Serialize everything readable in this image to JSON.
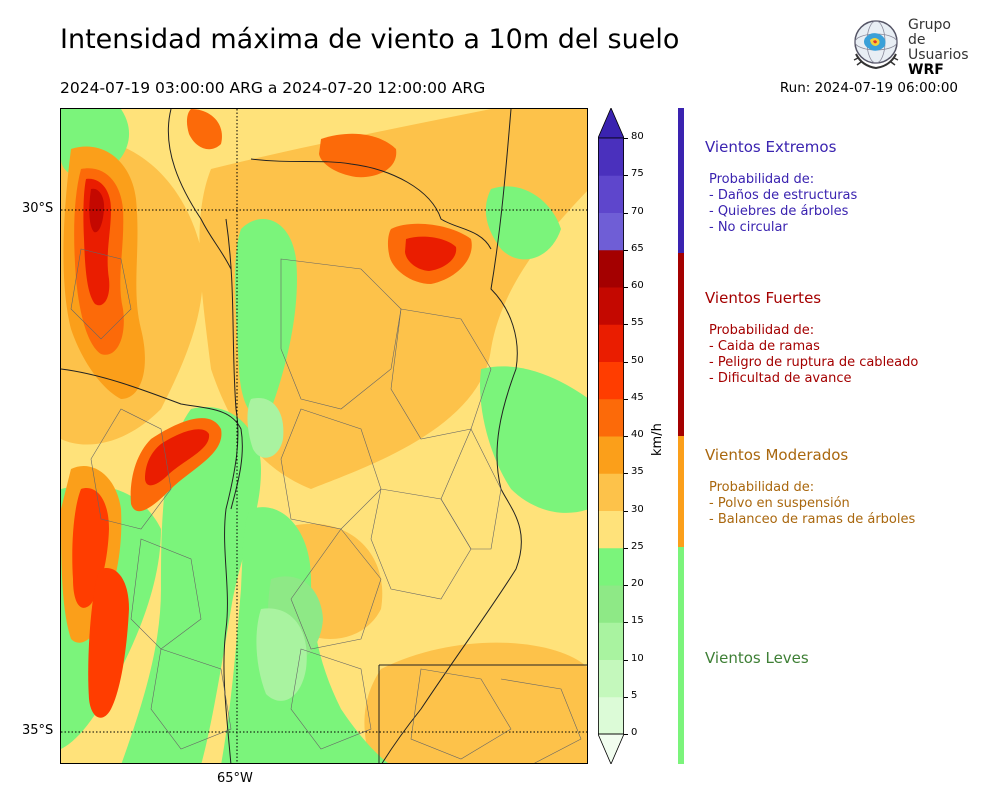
{
  "header": {
    "title": "Intensidad máxima de viento a 10m del suelo",
    "subtitle": "2024-07-19 03:00:00 ARG  a  2024-07-20 12:00:00 ARG",
    "run": "Run: 2024-07-19 06:00:00"
  },
  "logo": {
    "line1": "Grupo de",
    "line2": "Usuarios",
    "line3": "WRF"
  },
  "map": {
    "lat_labels": [
      "30°S",
      "35°S"
    ],
    "lon_labels": [
      "65°W"
    ]
  },
  "colorbar": {
    "unit": "km/h",
    "ticks": [
      "0",
      "5",
      "10",
      "15",
      "20",
      "25",
      "30",
      "35",
      "40",
      "45",
      "50",
      "55",
      "60",
      "65",
      "70",
      "75",
      "80"
    ],
    "colors": [
      "#f1fdef",
      "#dcfbd7",
      "#c4f8bc",
      "#a9f3a0",
      "#8ee986",
      "#7bf47b",
      "#ffe27a",
      "#fdc24a",
      "#fb9f1a",
      "#fc6a09",
      "#ff3d00",
      "#ea1d00",
      "#c40800",
      "#a40000",
      "#6f5ed6",
      "#5e46cc",
      "#4a30bd",
      "#3a23b0"
    ]
  },
  "categories": [
    {
      "title": "Vientos Extremos",
      "color": "#3a23b0",
      "lines": [
        "Probabilidad de:",
        "- Daños de estructuras",
        "- Quiebres de árboles",
        "- No circular"
      ]
    },
    {
      "title": "Vientos Fuertes",
      "color": "#a40000",
      "lines": [
        "Probabilidad de:",
        "- Caida de ramas",
        "- Peligro de ruptura de cableado",
        "- Dificultad de avance"
      ]
    },
    {
      "title": "Vientos Moderados",
      "color": "#a9670e",
      "bar_color": "#fb9f1a",
      "lines": [
        "Probabilidad de:",
        "- Polvo en suspensión",
        "- Balanceo de ramas de árboles"
      ]
    },
    {
      "title": "Vientos Leves",
      "color": "#3e7f35",
      "bar_color": "#7bf47b",
      "lines": []
    }
  ]
}
